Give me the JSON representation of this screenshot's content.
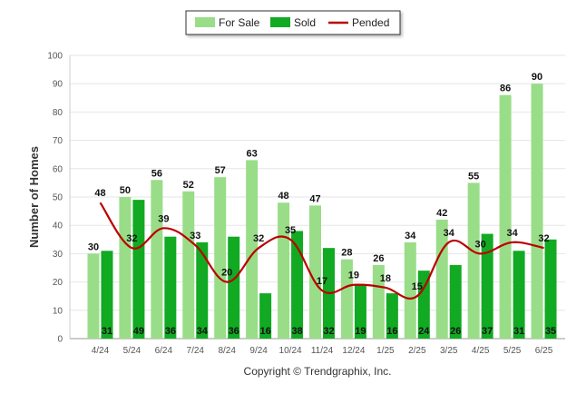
{
  "chart_data": {
    "type": "bar",
    "ylabel": "Number of Homes",
    "ylim": [
      0,
      100
    ],
    "yticks": [
      0,
      10,
      20,
      30,
      40,
      50,
      60,
      70,
      80,
      90,
      100
    ],
    "grid": true,
    "legend_position": "top-center",
    "categories": [
      "4/24",
      "5/24",
      "6/24",
      "7/24",
      "8/24",
      "9/24",
      "10/24",
      "11/24",
      "12/24",
      "1/25",
      "2/25",
      "3/25",
      "4/25",
      "5/25",
      "6/25"
    ],
    "series": [
      {
        "name": "For Sale",
        "kind": "bar",
        "color": "#99dd88",
        "values": [
          30,
          50,
          56,
          52,
          57,
          63,
          48,
          47,
          28,
          26,
          34,
          42,
          55,
          86,
          90
        ]
      },
      {
        "name": "Sold",
        "kind": "bar",
        "color": "#11aa22",
        "values": [
          31,
          49,
          36,
          34,
          36,
          16,
          38,
          32,
          19,
          16,
          24,
          26,
          37,
          31,
          35
        ]
      },
      {
        "name": "Pended",
        "kind": "line",
        "color": "#bb0000",
        "values": [
          48,
          32,
          39,
          33,
          20,
          32,
          35,
          17,
          19,
          18,
          15,
          34,
          30,
          34,
          32
        ]
      }
    ]
  },
  "footer": {
    "copyright": "Copyright © Trendgraphix, Inc."
  }
}
